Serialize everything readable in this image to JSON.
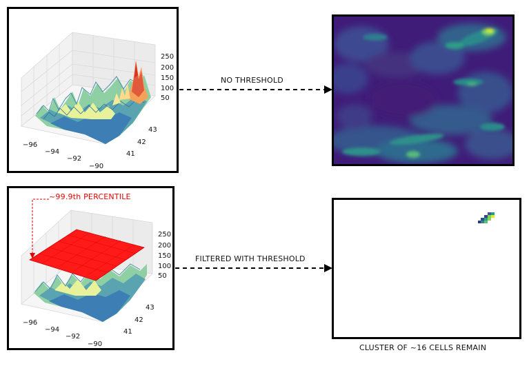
{
  "top_row": {
    "arrow_label": "NO THRESHOLD",
    "z_ticks": [
      "250",
      "200",
      "150",
      "100",
      "50"
    ],
    "lon_ticks": [
      "−96",
      "−94",
      "−92",
      "−90"
    ],
    "lat_ticks": [
      "43",
      "42",
      "41"
    ]
  },
  "bottom_row": {
    "arrow_label": "FILTERED WITH THRESHOLD",
    "threshold_label": "~99.9th PERCENTILE",
    "z_ticks": [
      "250",
      "200",
      "150",
      "100",
      "50"
    ],
    "lon_ticks": [
      "−96",
      "−94",
      "−92",
      "−90"
    ],
    "lat_ticks": [
      "43",
      "42",
      "41"
    ],
    "result_caption": "CLUSTER OF ~16 CELLS REMAIN"
  },
  "colors": {
    "threshold_plane": "#ff1a1a",
    "threshold_text": "#ee0000",
    "heatmap_base": "#3b0f70",
    "heatmap_mid": "#2c7e8e",
    "heatmap_high": "#d9ef2b"
  }
}
